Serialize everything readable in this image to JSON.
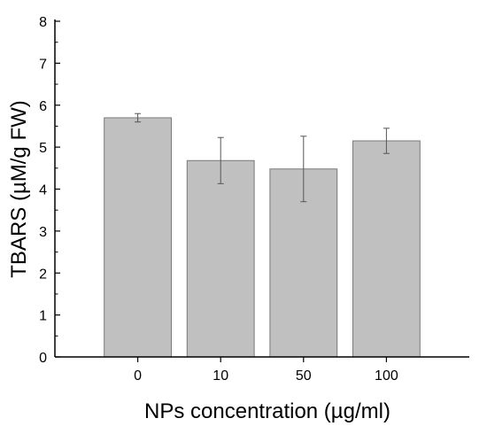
{
  "chart_data": {
    "type": "bar",
    "title": "",
    "xlabel": "NPs concentration (µg/ml)",
    "ylabel": "TBARS (µM/g FW)",
    "categories": [
      "0",
      "10",
      "50",
      "100"
    ],
    "series": [
      {
        "values": [
          5.7,
          4.68,
          4.48,
          5.15
        ],
        "error": [
          0.1,
          0.55,
          0.78,
          0.3
        ]
      }
    ],
    "ylim": [
      0,
      8
    ],
    "yticks": [
      "0",
      "1",
      "2",
      "3",
      "4",
      "5",
      "6",
      "7",
      "8"
    ],
    "grid": false,
    "bar_color": "#c0c0c0",
    "bar_edge_color": "#7a7a7a",
    "error_bar_color": "#555555",
    "axis_color": "#000000"
  }
}
